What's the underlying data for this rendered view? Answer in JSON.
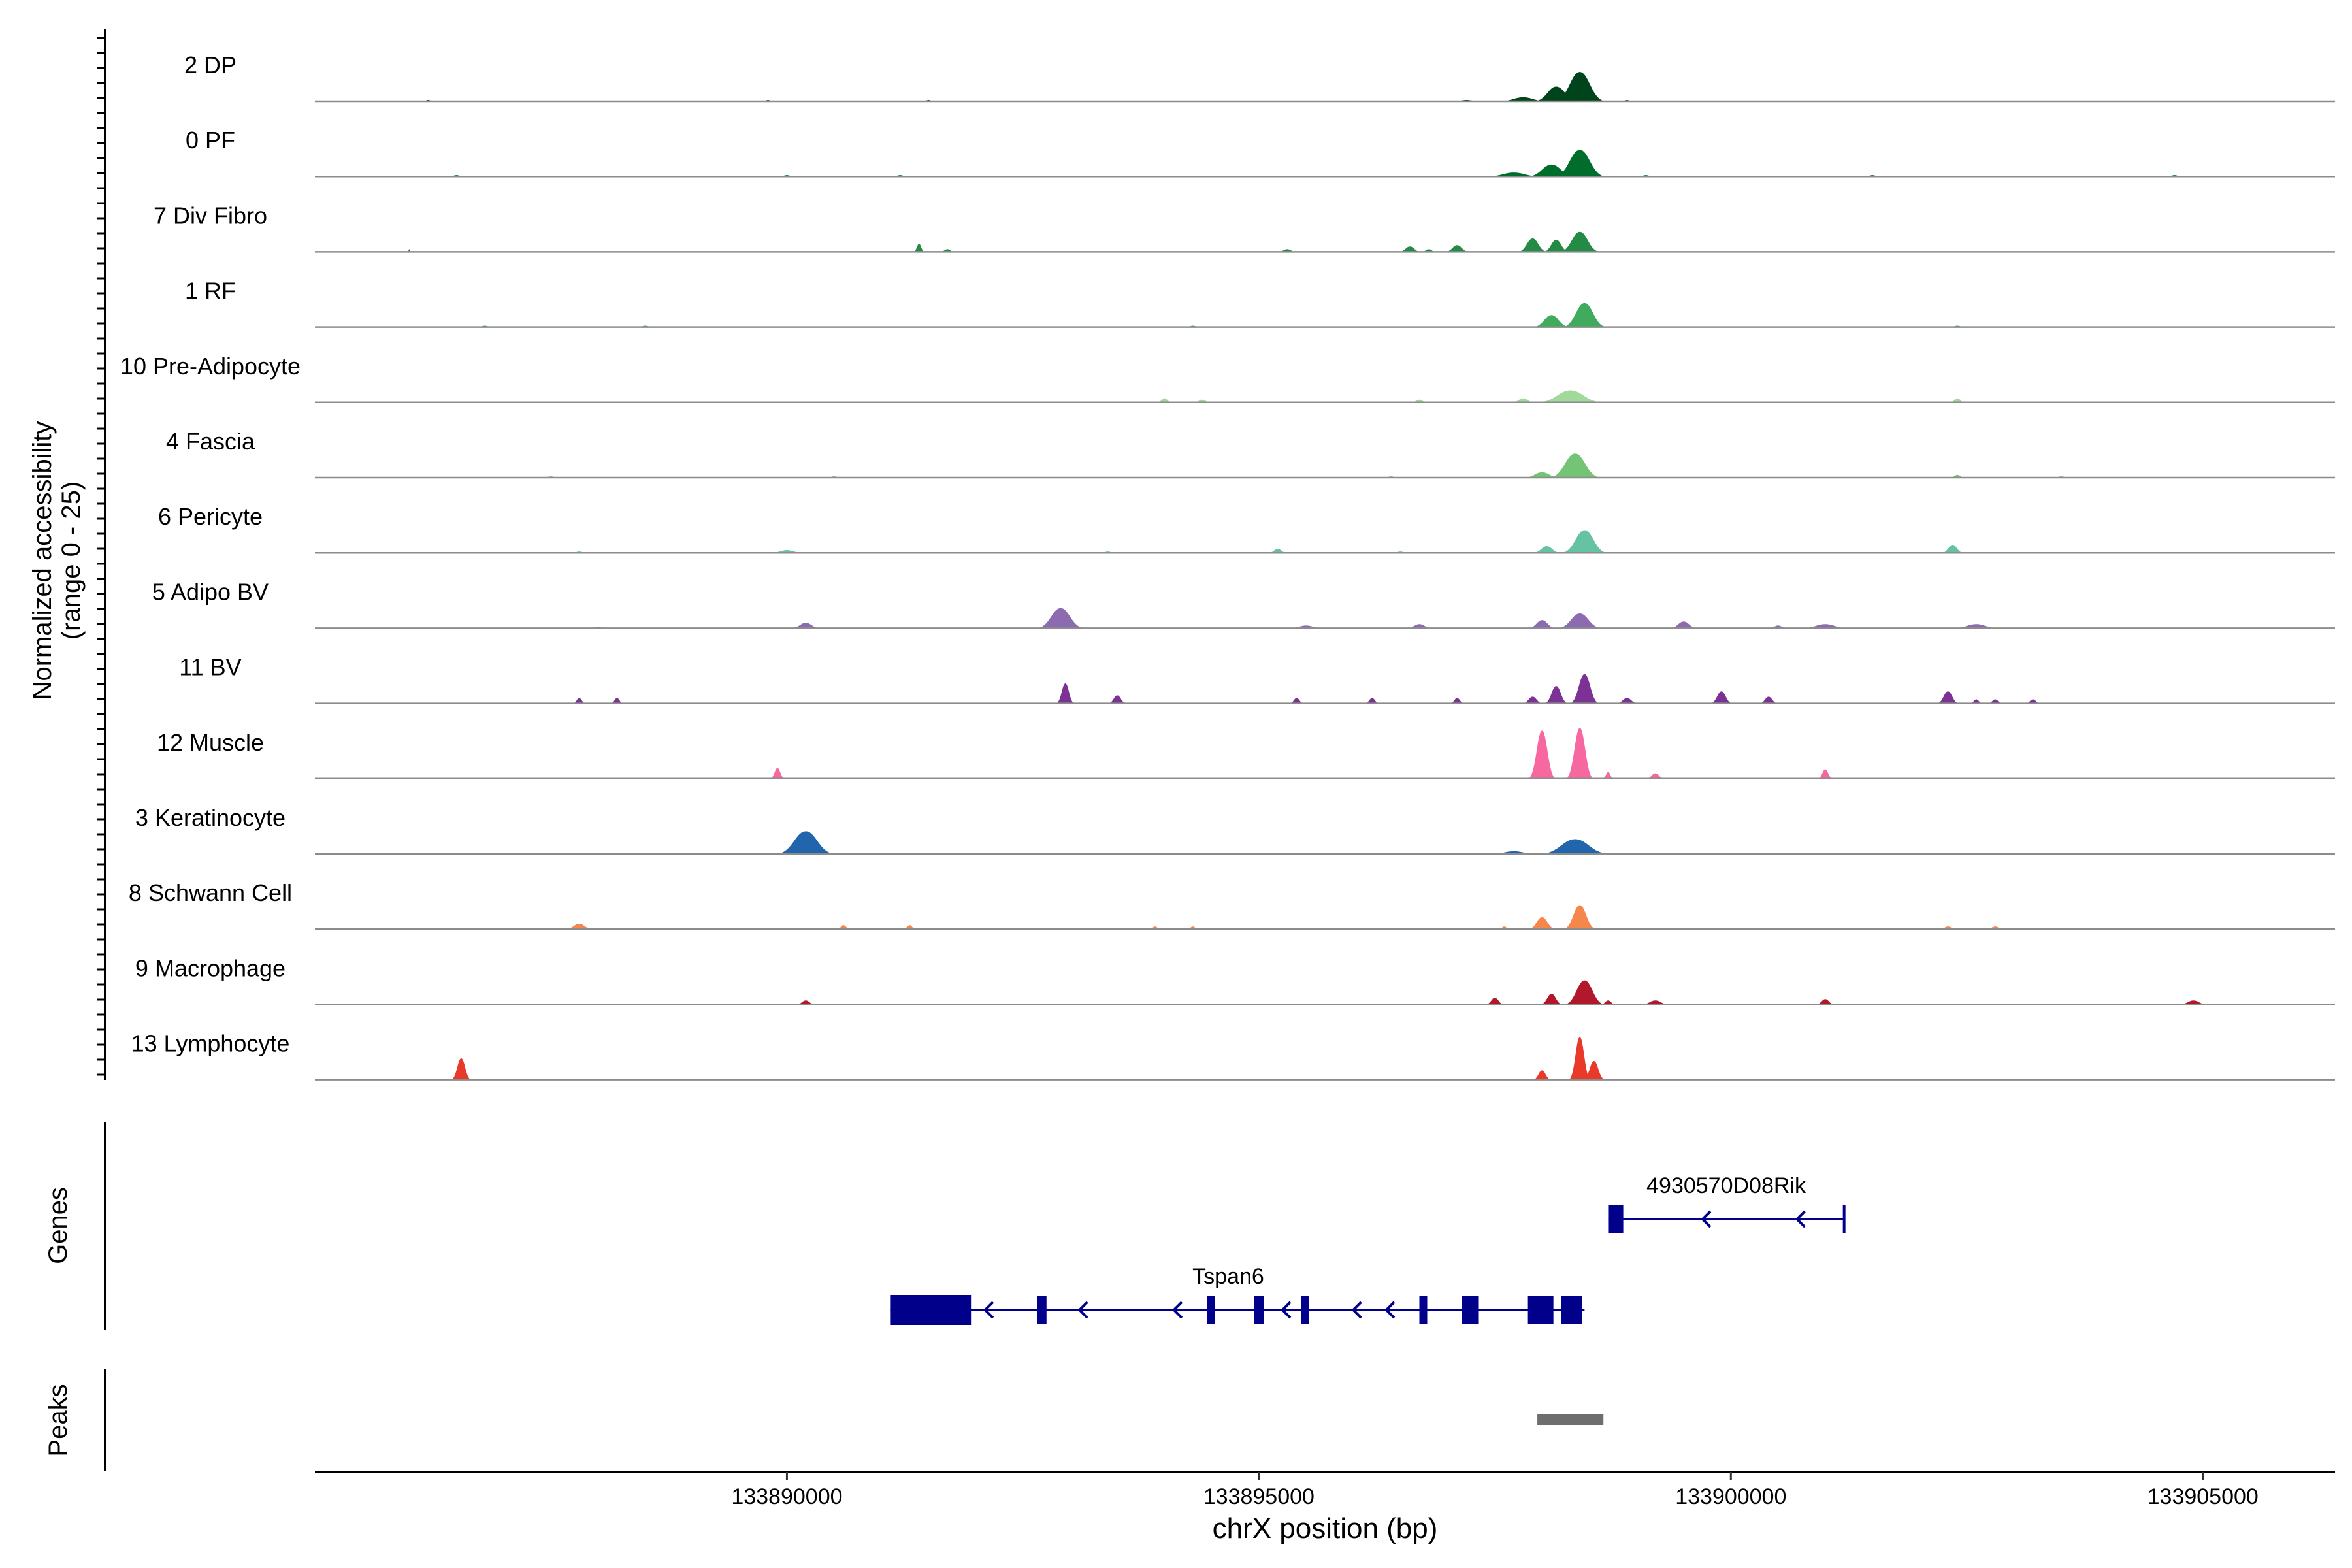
{
  "chart_data": {
    "type": "area",
    "title": "",
    "xlabel": "chrX position (bp)",
    "ylabel_lines": [
      "Normalized accessibility",
      "(range 0 - 25)"
    ],
    "yrange": [
      0,
      25
    ],
    "xlim": [
      133885000,
      133906400
    ],
    "xticks": [
      133890000,
      133895000,
      133900000,
      133905000
    ],
    "xtick_labels": [
      "133890000",
      "133895000",
      "133900000",
      "133905000"
    ],
    "grid": false,
    "legend": "none",
    "tracks": [
      {
        "name": "2 DP",
        "color": "#00441B",
        "peaks": [
          [
            133898400,
            22,
            280
          ],
          [
            133898150,
            11,
            240
          ],
          [
            133897800,
            3,
            260
          ],
          [
            133897200,
            1,
            150
          ],
          [
            133886200,
            1,
            60
          ],
          [
            133889800,
            1,
            60
          ],
          [
            133891500,
            1,
            60
          ],
          [
            133898900,
            1,
            60
          ]
        ]
      },
      {
        "name": "0 PF",
        "color": "#006D2C",
        "peaks": [
          [
            133898400,
            20,
            280
          ],
          [
            133898100,
            9,
            260
          ],
          [
            133897700,
            3,
            300
          ],
          [
            133899100,
            1,
            80
          ],
          [
            133886500,
            1,
            80
          ],
          [
            133890000,
            1,
            80
          ],
          [
            133891200,
            1,
            80
          ],
          [
            133901500,
            1,
            80
          ],
          [
            133904700,
            1,
            80
          ]
        ]
      },
      {
        "name": "7 Div Fibro",
        "color": "#238B45",
        "peaks": [
          [
            133898400,
            15,
            220
          ],
          [
            133897900,
            10,
            160
          ],
          [
            133898150,
            9,
            140
          ],
          [
            133897100,
            5,
            130
          ],
          [
            133896600,
            4,
            120
          ],
          [
            133891400,
            6,
            60
          ],
          [
            133891700,
            2,
            80
          ],
          [
            133895300,
            2,
            100
          ],
          [
            133896800,
            2,
            80
          ],
          [
            133886000,
            2,
            20
          ]
        ]
      },
      {
        "name": "1 RF",
        "color": "#41AB5D",
        "peaks": [
          [
            133898450,
            18,
            240
          ],
          [
            133898100,
            9,
            200
          ],
          [
            133886800,
            1,
            80
          ],
          [
            133888500,
            1,
            80
          ],
          [
            133902400,
            1,
            80
          ],
          [
            133894300,
            1,
            80
          ]
        ]
      },
      {
        "name": "10 Pre-Adipocyte",
        "color": "#A1D99B",
        "peaks": [
          [
            133898300,
            9,
            360
          ],
          [
            133897800,
            3,
            120
          ],
          [
            133902400,
            3,
            80
          ],
          [
            133894000,
            3,
            80
          ],
          [
            133894400,
            2,
            90
          ],
          [
            133896700,
            2,
            90
          ]
        ]
      },
      {
        "name": "4 Fascia",
        "color": "#74C476",
        "peaks": [
          [
            133898350,
            18,
            280
          ],
          [
            133898000,
            4,
            200
          ],
          [
            133902400,
            2,
            80
          ],
          [
            133887500,
            1,
            80
          ],
          [
            133890500,
            1,
            80
          ],
          [
            133896400,
            1,
            80
          ],
          [
            133903500,
            1,
            80
          ]
        ]
      },
      {
        "name": "6 Pericyte",
        "color": "#66C2A4",
        "peaks": [
          [
            133898450,
            17,
            250
          ],
          [
            133898050,
            5,
            150
          ],
          [
            133902350,
            6,
            120
          ],
          [
            133895200,
            3,
            100
          ],
          [
            133890000,
            2,
            180
          ],
          [
            133893400,
            1,
            80
          ],
          [
            133887800,
            1,
            80
          ],
          [
            133896500,
            1,
            80
          ]
        ]
      },
      {
        "name": "5 Adipo BV",
        "color": "#8C6BB1",
        "peaks": [
          [
            133892900,
            15,
            260
          ],
          [
            133898400,
            11,
            240
          ],
          [
            133898000,
            6,
            150
          ],
          [
            133890200,
            4,
            160
          ],
          [
            133899500,
            5,
            150
          ],
          [
            133902600,
            3,
            250
          ],
          [
            133901000,
            3,
            250
          ],
          [
            133895500,
            2,
            180
          ],
          [
            133896700,
            3,
            140
          ],
          [
            133888000,
            1,
            80
          ],
          [
            133900500,
            2,
            100
          ]
        ]
      },
      {
        "name": "11 BV",
        "color": "#7B3294",
        "peaks": [
          [
            133898450,
            22,
            160
          ],
          [
            133898150,
            13,
            130
          ],
          [
            133892950,
            15,
            100
          ],
          [
            133893500,
            6,
            100
          ],
          [
            133897900,
            5,
            110
          ],
          [
            133898900,
            4,
            120
          ],
          [
            133899900,
            9,
            120
          ],
          [
            133900400,
            5,
            100
          ],
          [
            133902300,
            9,
            120
          ],
          [
            133887800,
            4,
            70
          ],
          [
            133888200,
            4,
            70
          ],
          [
            133895400,
            4,
            80
          ],
          [
            133896200,
            4,
            80
          ],
          [
            133897100,
            4,
            80
          ],
          [
            133902800,
            3,
            80
          ],
          [
            133903200,
            3,
            80
          ],
          [
            133902600,
            3,
            70
          ]
        ]
      },
      {
        "name": "12 Muscle",
        "color": "#F768A1",
        "peaks": [
          [
            133898000,
            36,
            150
          ],
          [
            133898400,
            38,
            150
          ],
          [
            133889900,
            8,
            80
          ],
          [
            133899200,
            4,
            100
          ],
          [
            133901000,
            7,
            80
          ],
          [
            133898700,
            5,
            60
          ]
        ]
      },
      {
        "name": "3 Keratinocyte",
        "color": "#2166AC",
        "peaks": [
          [
            133890200,
            17,
            320
          ],
          [
            133898350,
            11,
            380
          ],
          [
            133897700,
            2,
            250
          ],
          [
            133889600,
            1,
            250
          ],
          [
            133887000,
            1,
            300
          ],
          [
            133893500,
            1,
            250
          ],
          [
            133901500,
            1,
            250
          ],
          [
            133895800,
            1,
            200
          ]
        ]
      },
      {
        "name": "8 Schwann Cell",
        "color": "#F4874B",
        "peaks": [
          [
            133898400,
            18,
            180
          ],
          [
            133898000,
            9,
            150
          ],
          [
            133887800,
            4,
            150
          ],
          [
            133890600,
            3,
            70
          ],
          [
            133891300,
            3,
            70
          ],
          [
            133893900,
            2,
            60
          ],
          [
            133894300,
            2,
            60
          ],
          [
            133897600,
            2,
            60
          ],
          [
            133902300,
            2,
            90
          ],
          [
            133902800,
            2,
            90
          ]
        ]
      },
      {
        "name": "9 Macrophage",
        "color": "#B2182B",
        "peaks": [
          [
            133898450,
            18,
            220
          ],
          [
            133898100,
            8,
            120
          ],
          [
            133897500,
            5,
            100
          ],
          [
            133890200,
            3,
            100
          ],
          [
            133899200,
            3,
            150
          ],
          [
            133901000,
            4,
            100
          ],
          [
            133904900,
            3,
            150
          ],
          [
            133898700,
            3,
            80
          ]
        ]
      },
      {
        "name": "13 Lymphocyte",
        "color": "#E8392B",
        "peaks": [
          [
            133898400,
            32,
            120
          ],
          [
            133898550,
            14,
            120
          ],
          [
            133898000,
            7,
            100
          ],
          [
            133886550,
            16,
            110
          ]
        ]
      }
    ],
    "genes_label": "Genes",
    "peaks_label": "Peaks",
    "genes": [
      {
        "name": "4930570D08Rik",
        "strand": "-",
        "start": 133898700,
        "end": 133901200,
        "exons": [
          [
            133898700,
            133898860
          ]
        ],
        "arrows": [
          133899700,
          133900700
        ]
      },
      {
        "name": "Tspan6",
        "strand": "-",
        "start": 133891100,
        "end": 133898450,
        "exons": [
          [
            133891100,
            133891950
          ],
          [
            133892650,
            133892750
          ],
          [
            133894450,
            133894530
          ],
          [
            133894950,
            133895050
          ],
          [
            133895450,
            133895530
          ],
          [
            133896700,
            133896780
          ],
          [
            133897150,
            133897330
          ],
          [
            133897850,
            133898120
          ],
          [
            133898200,
            133898420
          ]
        ],
        "arrows": [
          133892100,
          133893100,
          133894100,
          133895250,
          133896000,
          133896350,
          133897200
        ]
      }
    ],
    "peak_regions": [
      [
        133897950,
        133898650
      ]
    ]
  }
}
